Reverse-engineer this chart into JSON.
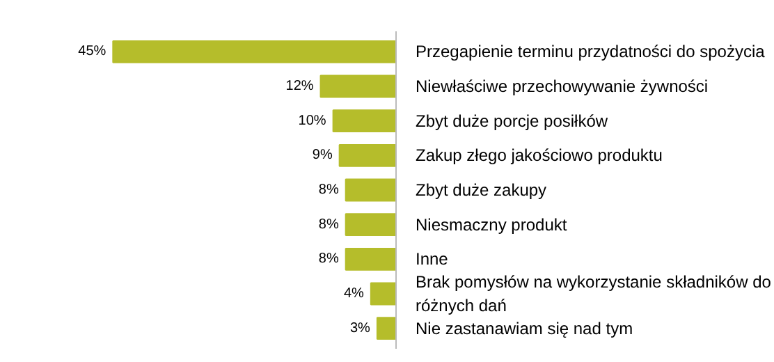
{
  "chart_data": {
    "type": "bar",
    "orientation": "horizontal",
    "categories": [
      "Przegapienie terminu przydatności do spożycia",
      "Niewłaściwe przechowywanie żywności",
      "Zbyt duże porcje posiłków",
      "Zakup złego jakościowo produktu",
      "Zbyt duże zakupy",
      "Niesmaczny produkt",
      "Inne",
      "Brak pomysłów na wykorzystanie składników do różnych dań",
      "Nie zastanawiam się nad tym"
    ],
    "values": [
      45,
      12,
      10,
      9,
      8,
      8,
      8,
      4,
      3
    ],
    "value_labels": [
      "45%",
      "12%",
      "10%",
      "9%",
      "8%",
      "8%",
      "8%",
      "4%",
      "3%"
    ],
    "color": "#b5bd2b",
    "grid": false
  }
}
